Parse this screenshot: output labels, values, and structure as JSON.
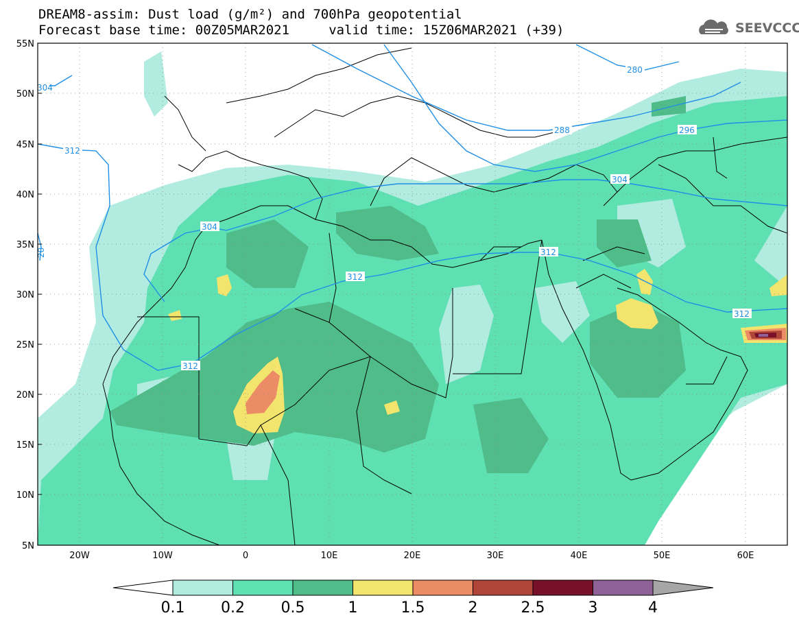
{
  "header": {
    "title_line1": "DREAM8-assim: Dust load (g/m²) and 700hPa geopotential",
    "title_line2": "Forecast base time: 00Z05MAR2021     valid time: 15Z06MAR2021 (+39)",
    "logo_text": "SEEVCCC"
  },
  "map": {
    "lat_labels": [
      "55N",
      "50N",
      "45N",
      "40N",
      "35N",
      "30N",
      "25N",
      "20N",
      "15N",
      "10N",
      "5N"
    ],
    "lon_labels": [
      "20W",
      "10W",
      "0",
      "10E",
      "20E",
      "30E",
      "40E",
      "50E",
      "60E"
    ],
    "contour_labels": [
      "280",
      "288",
      "296",
      "304",
      "304",
      "312",
      "312",
      "312",
      "312",
      "304",
      "20"
    ],
    "contour_color": "#1f8fe6"
  },
  "colorbar": {
    "labels": [
      "0.1",
      "0.2",
      "0.5",
      "1",
      "1.5",
      "2",
      "2.5",
      "3",
      "4"
    ],
    "colors": [
      "#b2ece0",
      "#5fe0b2",
      "#4fbc8a",
      "#f2e46c",
      "#ec8c66",
      "#b0463a",
      "#78102a",
      "#8e6296",
      "#a6a6a6"
    ]
  }
}
